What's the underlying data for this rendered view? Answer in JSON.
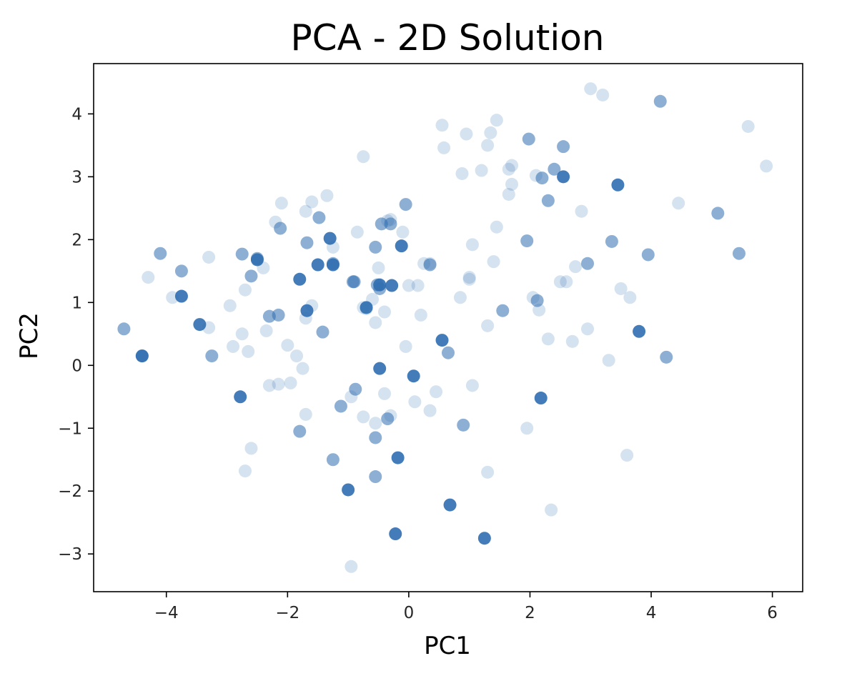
{
  "chart_data": {
    "type": "scatter",
    "title": "PCA - 2D Solution",
    "xlabel": "PC1",
    "ylabel": "PC2",
    "xlim": [
      -5.2,
      6.5
    ],
    "ylim": [
      -3.6,
      4.8
    ],
    "xticks": [
      -4,
      -2,
      0,
      2,
      4,
      6
    ],
    "yticks": [
      -3,
      -2,
      -1,
      0,
      1,
      2,
      3,
      4
    ],
    "grid": false,
    "legend": false,
    "color": "#2f6eb0",
    "series": [
      {
        "opacity": 0.2,
        "points": [
          [
            -4.3,
            1.4
          ],
          [
            -3.9,
            1.08
          ],
          [
            -3.3,
            1.72
          ],
          [
            -3.3,
            0.6
          ],
          [
            -2.95,
            0.95
          ],
          [
            -2.9,
            0.3
          ],
          [
            -2.75,
            0.5
          ],
          [
            -2.7,
            1.2
          ],
          [
            -2.65,
            0.22
          ],
          [
            -2.6,
            -1.32
          ],
          [
            -2.7,
            -1.68
          ],
          [
            -2.4,
            1.55
          ],
          [
            -2.35,
            0.55
          ],
          [
            -2.2,
            2.28
          ],
          [
            -2.1,
            2.58
          ],
          [
            -2.15,
            -0.3
          ],
          [
            -2.3,
            -0.32
          ],
          [
            -2.0,
            0.32
          ],
          [
            -1.95,
            -0.28
          ],
          [
            -1.85,
            0.15
          ],
          [
            -1.75,
            -0.05
          ],
          [
            -1.7,
            2.45
          ],
          [
            -1.6,
            2.6
          ],
          [
            -1.7,
            0.75
          ],
          [
            -1.6,
            0.95
          ],
          [
            -1.7,
            -0.78
          ],
          [
            -1.35,
            2.7
          ],
          [
            -1.25,
            1.88
          ],
          [
            -0.85,
            2.12
          ],
          [
            -0.75,
            3.32
          ],
          [
            -0.75,
            0.92
          ],
          [
            -0.75,
            -0.82
          ],
          [
            -0.95,
            -0.5
          ],
          [
            -0.6,
            1.05
          ],
          [
            -0.55,
            0.68
          ],
          [
            -0.55,
            -0.92
          ],
          [
            -0.4,
            0.85
          ],
          [
            -0.35,
            2.3
          ],
          [
            -0.3,
            2.32
          ],
          [
            -0.5,
            1.55
          ],
          [
            -0.4,
            -0.45
          ],
          [
            -0.3,
            -0.8
          ],
          [
            -0.1,
            2.12
          ],
          [
            0.0,
            1.27
          ],
          [
            -0.05,
            0.3
          ],
          [
            0.15,
            1.27
          ],
          [
            0.2,
            0.8
          ],
          [
            0.1,
            -0.58
          ],
          [
            0.25,
            1.62
          ],
          [
            0.35,
            1.62
          ],
          [
            0.35,
            -0.72
          ],
          [
            0.45,
            -0.42
          ],
          [
            0.55,
            3.82
          ],
          [
            0.58,
            3.46
          ],
          [
            0.85,
            1.08
          ],
          [
            0.95,
            3.68
          ],
          [
            0.88,
            3.05
          ],
          [
            1.0,
            1.4
          ],
          [
            1.0,
            1.37
          ],
          [
            1.05,
            1.92
          ],
          [
            1.05,
            -0.32
          ],
          [
            1.2,
            3.1
          ],
          [
            1.3,
            3.5
          ],
          [
            1.35,
            3.7
          ],
          [
            1.45,
            3.9
          ],
          [
            1.3,
            0.63
          ],
          [
            1.4,
            1.65
          ],
          [
            1.45,
            2.2
          ],
          [
            1.3,
            -1.7
          ],
          [
            1.65,
            2.72
          ],
          [
            1.65,
            3.12
          ],
          [
            1.7,
            3.18
          ],
          [
            1.7,
            2.88
          ],
          [
            2.05,
            1.08
          ],
          [
            2.1,
            3.02
          ],
          [
            2.15,
            0.88
          ],
          [
            2.3,
            0.42
          ],
          [
            2.5,
            1.33
          ],
          [
            2.6,
            1.33
          ],
          [
            2.75,
            1.57
          ],
          [
            2.7,
            0.38
          ],
          [
            2.85,
            2.45
          ],
          [
            2.95,
            0.58
          ],
          [
            3.0,
            4.4
          ],
          [
            3.2,
            4.3
          ],
          [
            3.3,
            0.08
          ],
          [
            3.5,
            1.22
          ],
          [
            3.65,
            1.08
          ],
          [
            3.6,
            -1.43
          ],
          [
            4.45,
            2.58
          ],
          [
            5.6,
            3.8
          ],
          [
            5.9,
            3.17
          ],
          [
            1.95,
            -1.0
          ],
          [
            2.35,
            -2.3
          ],
          [
            -0.95,
            -3.2
          ],
          [
            -0.7,
            0.9
          ]
        ]
      },
      {
        "opacity": 0.55,
        "points": [
          [
            -4.7,
            0.58
          ],
          [
            -4.4,
            0.15
          ],
          [
            -4.1,
            1.78
          ],
          [
            -3.75,
            1.5
          ],
          [
            -3.25,
            0.15
          ],
          [
            -2.75,
            1.77
          ],
          [
            -2.6,
            1.42
          ],
          [
            -2.3,
            0.78
          ],
          [
            -2.15,
            0.8
          ],
          [
            -2.5,
            1.7
          ],
          [
            -2.12,
            2.18
          ],
          [
            -1.68,
            1.95
          ],
          [
            -1.8,
            -1.05
          ],
          [
            -1.48,
            2.35
          ],
          [
            -1.42,
            0.53
          ],
          [
            -1.25,
            -1.5
          ],
          [
            -1.12,
            -0.65
          ],
          [
            -0.92,
            1.33
          ],
          [
            -0.88,
            -0.38
          ],
          [
            -0.55,
            -1.15
          ],
          [
            -0.55,
            -1.77
          ],
          [
            -0.52,
            1.28
          ],
          [
            -0.48,
            1.22
          ],
          [
            -0.35,
            -0.85
          ],
          [
            -0.3,
            2.25
          ],
          [
            -0.55,
            1.88
          ],
          [
            -0.05,
            2.56
          ],
          [
            0.35,
            1.6
          ],
          [
            0.65,
            0.2
          ],
          [
            0.9,
            -0.95
          ],
          [
            1.55,
            0.87
          ],
          [
            1.95,
            1.98
          ],
          [
            2.12,
            1.03
          ],
          [
            2.2,
            2.98
          ],
          [
            2.3,
            2.62
          ],
          [
            2.4,
            3.12
          ],
          [
            2.95,
            1.62
          ],
          [
            3.35,
            1.97
          ],
          [
            3.95,
            1.76
          ],
          [
            4.25,
            0.13
          ],
          [
            5.1,
            2.42
          ],
          [
            5.45,
            1.78
          ],
          [
            4.15,
            4.2
          ],
          [
            2.55,
            3.48
          ],
          [
            1.98,
            3.6
          ],
          [
            -0.45,
            2.25
          ],
          [
            -1.25,
            1.62
          ],
          [
            -0.9,
            1.33
          ]
        ]
      },
      {
        "opacity": 0.9,
        "points": [
          [
            -4.4,
            0.15
          ],
          [
            -3.75,
            1.1
          ],
          [
            -3.45,
            0.65
          ],
          [
            -2.78,
            -0.5
          ],
          [
            -2.5,
            1.68
          ],
          [
            -1.8,
            1.37
          ],
          [
            -1.68,
            0.87
          ],
          [
            -1.5,
            1.6
          ],
          [
            -1.3,
            2.02
          ],
          [
            -1.25,
            1.6
          ],
          [
            -1.0,
            -1.98
          ],
          [
            -0.7,
            0.92
          ],
          [
            -0.48,
            -0.05
          ],
          [
            -0.48,
            1.28
          ],
          [
            -0.28,
            1.27
          ],
          [
            -0.22,
            -2.68
          ],
          [
            -0.18,
            -1.47
          ],
          [
            -0.12,
            1.9
          ],
          [
            0.08,
            -0.17
          ],
          [
            0.55,
            0.4
          ],
          [
            0.68,
            -2.22
          ],
          [
            1.25,
            -2.75
          ],
          [
            2.18,
            -0.52
          ],
          [
            2.55,
            3.0
          ],
          [
            3.45,
            2.87
          ],
          [
            3.8,
            0.54
          ]
        ]
      }
    ]
  }
}
